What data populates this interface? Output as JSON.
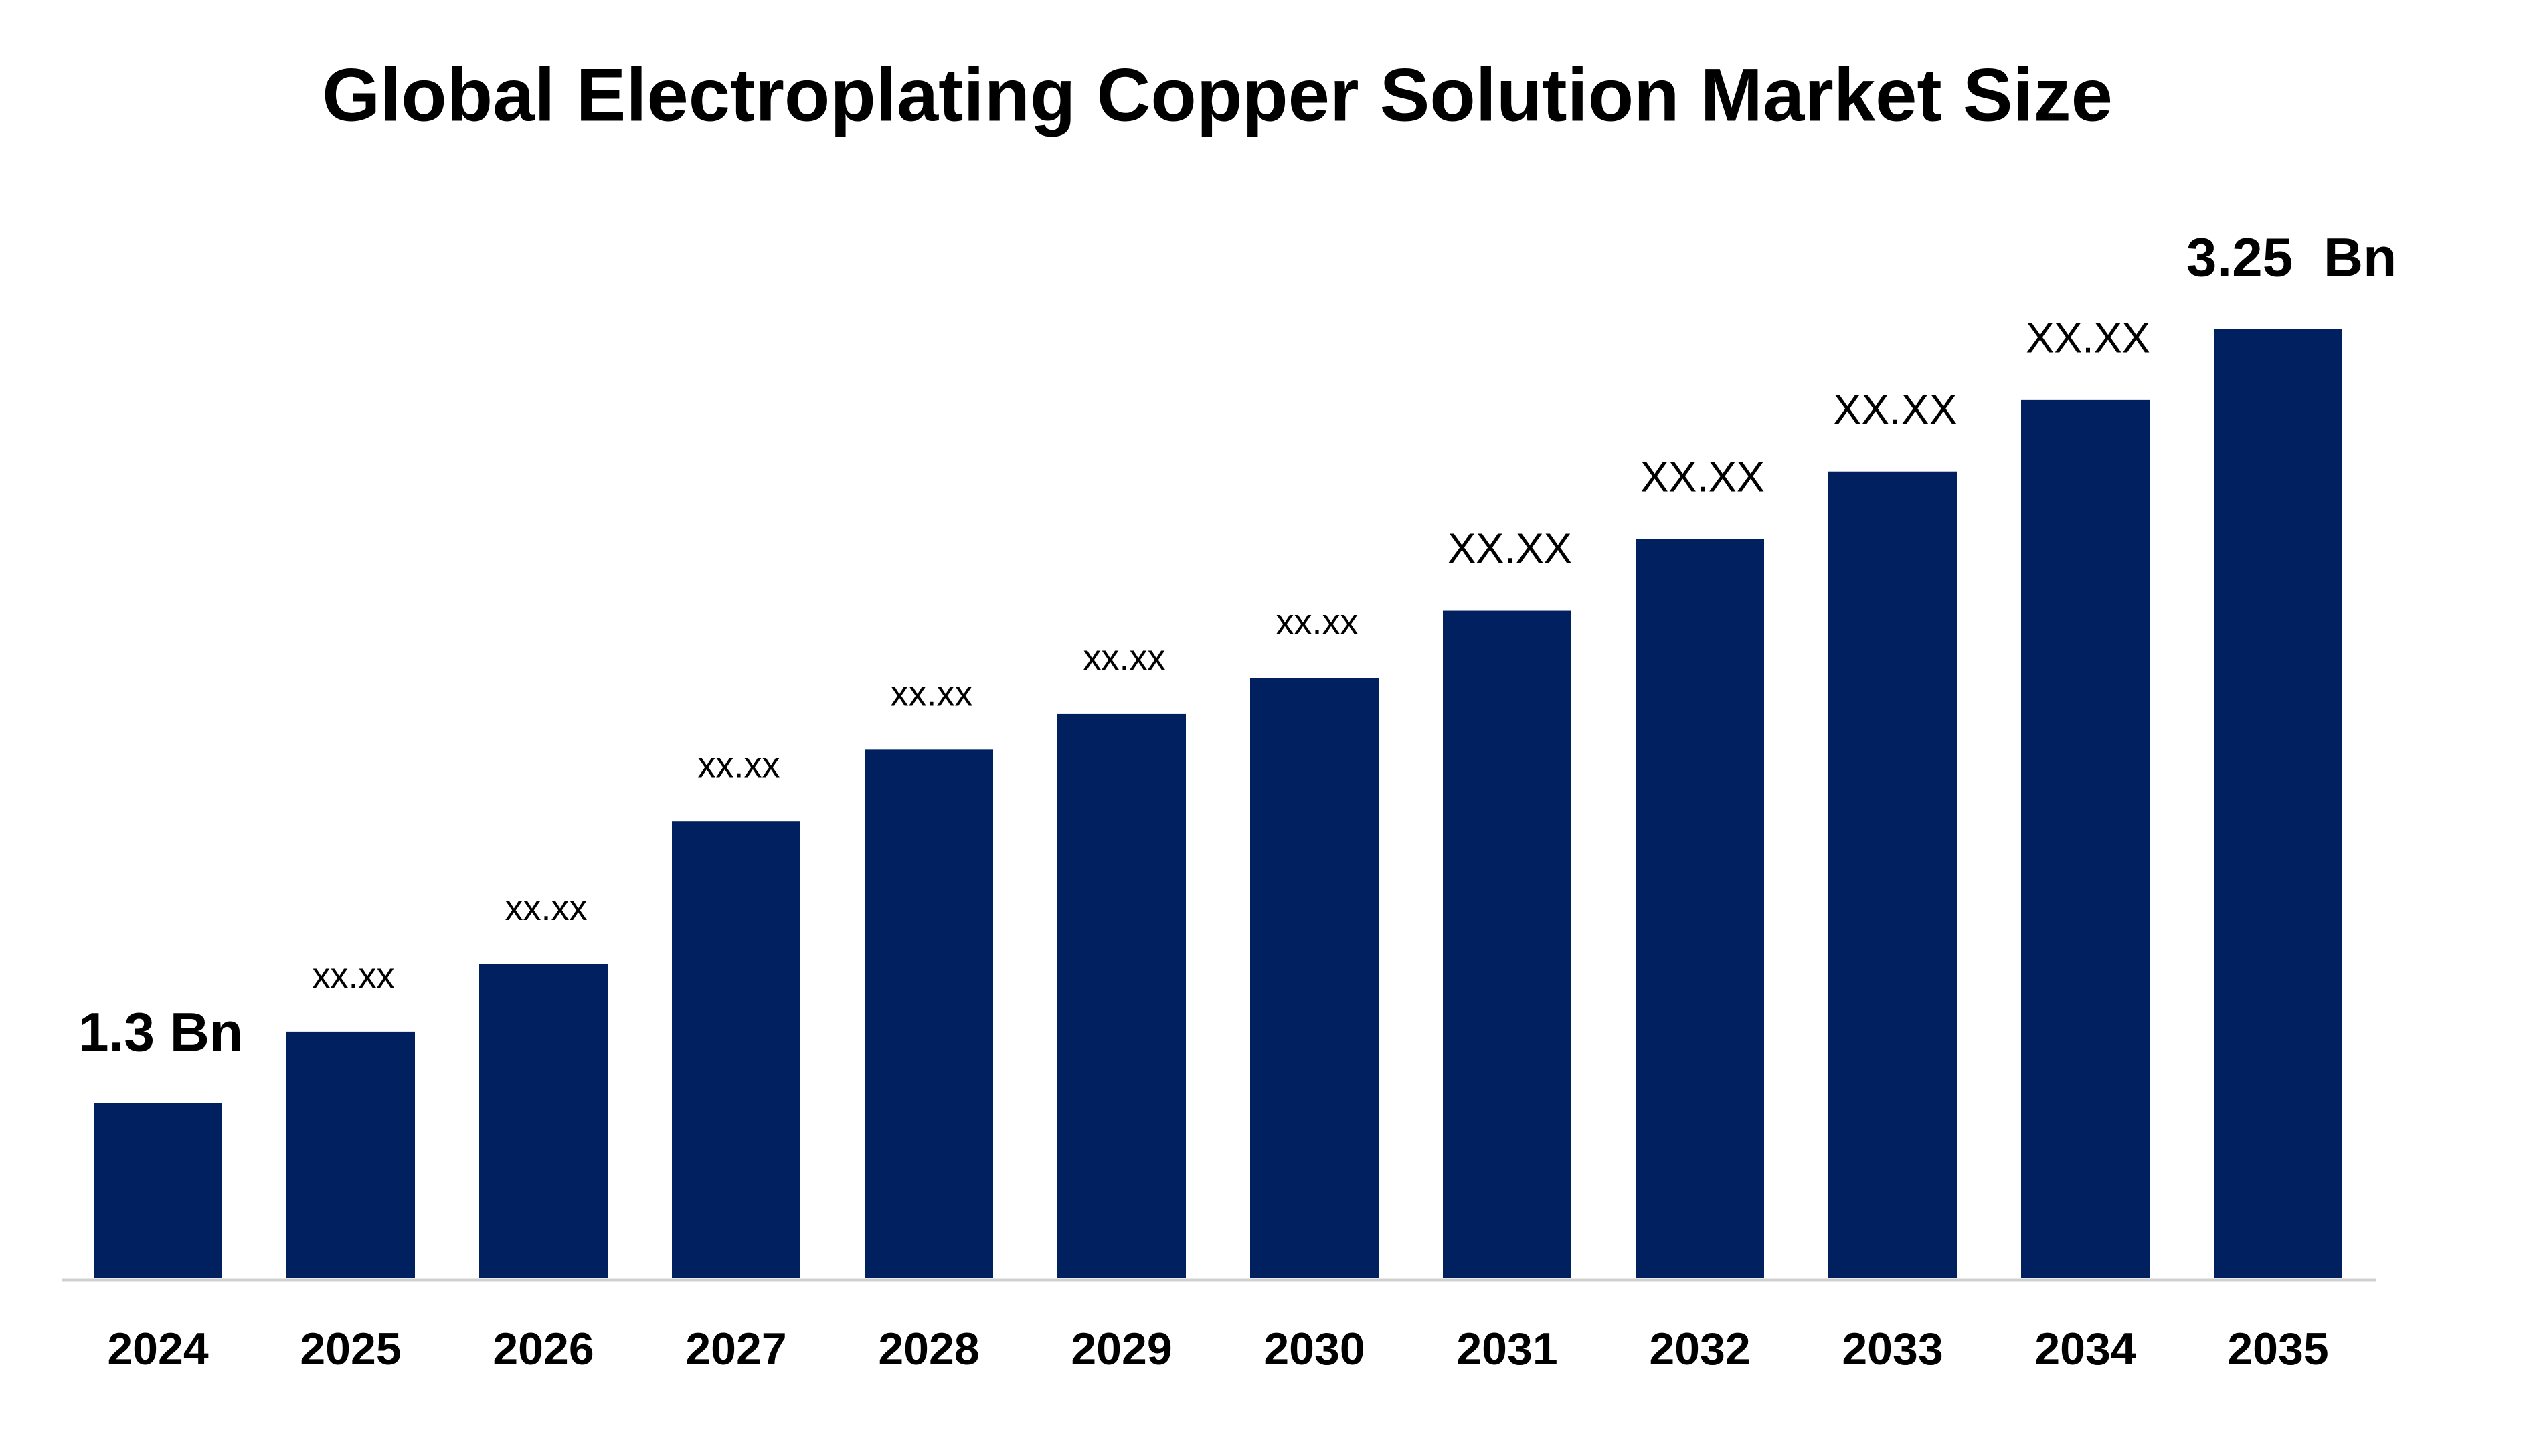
{
  "chart_data": {
    "type": "bar",
    "title": "Global Electroplating Copper Solution Market Size",
    "categories": [
      "2024",
      "2025",
      "2026",
      "2027",
      "2028",
      "2029",
      "2030",
      "2031",
      "2032",
      "2033",
      "2034",
      "2035"
    ],
    "values": [
      1.3,
      1.48,
      1.65,
      2.01,
      2.19,
      2.28,
      2.37,
      2.54,
      2.72,
      2.89,
      3.07,
      3.25
    ],
    "value_labels": [
      "1.3 Bn",
      "xx.xx",
      "xx.xx",
      "xx.xx",
      "xx.xx",
      "xx.xx",
      "xx.xx",
      "XX.XX",
      "XX.XX",
      "XX.XX",
      "XX.XX",
      "3.25  Bn"
    ],
    "color": "#002060",
    "ylim": [
      0.86,
      3.25
    ]
  }
}
